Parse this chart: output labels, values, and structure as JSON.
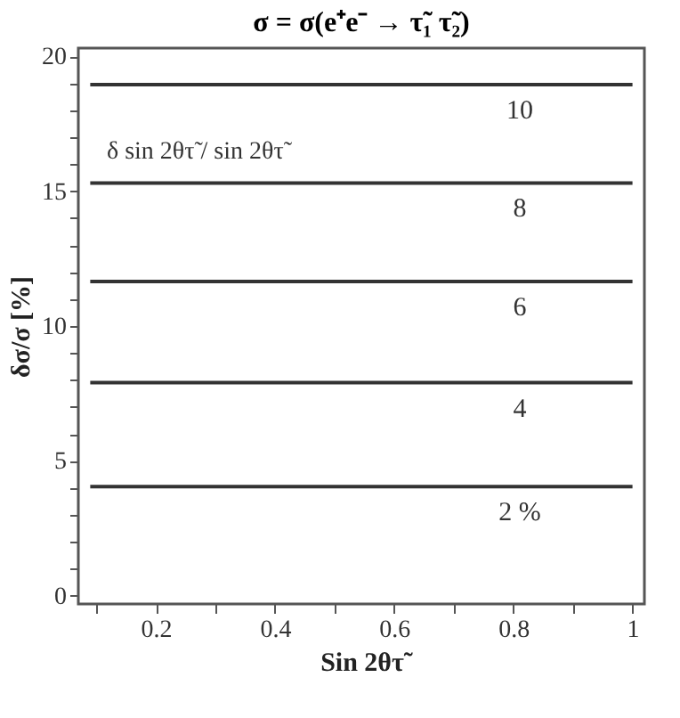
{
  "chart_data": {
    "type": "line",
    "title": "σ = σ(e⁺e⁻ → τ̃₁ τ̃₂)",
    "xlabel": "Sin 2θτ̃",
    "ylabel": "δσ/σ [%]",
    "annotations": [
      "δ sin 2θτ̃ / sin 2θτ̃"
    ],
    "x": [
      0.09,
      1.0
    ],
    "series": [
      {
        "name": "2 %",
        "color": "#333333",
        "values": [
          4.05,
          4.05
        ]
      },
      {
        "name": "4",
        "color": "#333333",
        "values": [
          7.9,
          7.9
        ]
      },
      {
        "name": "6",
        "color": "#333333",
        "values": [
          11.65,
          11.65
        ]
      },
      {
        "name": "8",
        "color": "#333333",
        "values": [
          15.3,
          15.3
        ]
      },
      {
        "name": "10",
        "color": "#333333",
        "values": [
          18.95,
          18.95
        ]
      }
    ],
    "xlim": [
      0.07,
      1.02
    ],
    "xticks": [
      {
        "value": 0.1,
        "label": null
      },
      0.2,
      {
        "value": 0.3,
        "label": null
      },
      0.4,
      {
        "value": 0.5,
        "label": null
      },
      0.6,
      {
        "value": 0.7,
        "label": null
      },
      0.8,
      {
        "value": 0.9,
        "label": null
      },
      {
        "value": 1,
        "label": "1"
      }
    ],
    "ylim": [
      -0.3,
      20.3
    ],
    "yticks": [
      0,
      {
        "value": 1,
        "label": null
      },
      {
        "value": 2,
        "label": null
      },
      {
        "value": 3,
        "label": null
      },
      {
        "value": 4,
        "label": null
      },
      5,
      {
        "value": 6,
        "label": null
      },
      {
        "value": 7,
        "label": null
      },
      {
        "value": 8,
        "label": null
      },
      {
        "value": 9,
        "label": null
      },
      10,
      {
        "value": 11,
        "label": null
      },
      {
        "value": 12,
        "label": null
      },
      {
        "value": 13,
        "label": null
      },
      {
        "value": 14,
        "label": null
      },
      15,
      {
        "value": 16,
        "label": null
      },
      {
        "value": 17,
        "label": null
      },
      {
        "value": 18,
        "label": null
      },
      {
        "value": 19,
        "label": null
      },
      20
    ],
    "grid": false,
    "marker": "none",
    "line_style": "solid"
  }
}
